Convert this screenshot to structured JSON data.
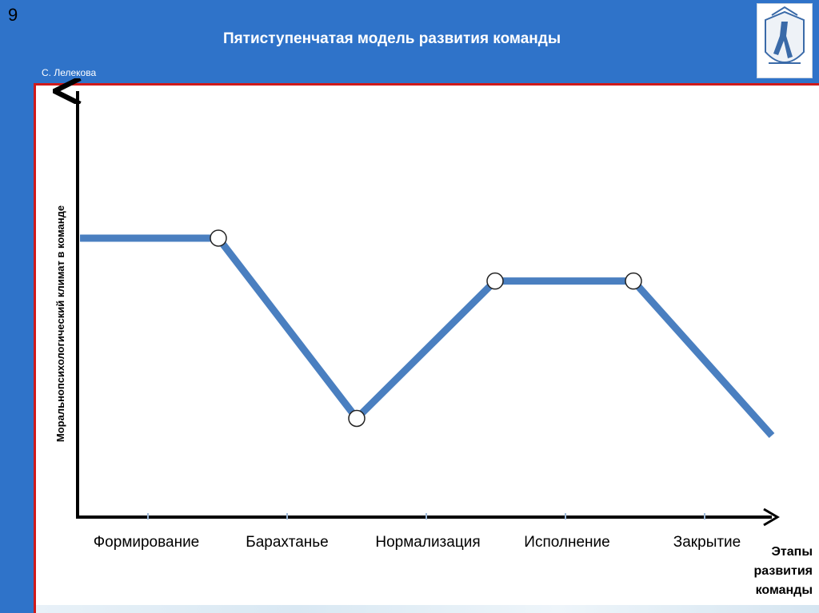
{
  "slide": {
    "number": "9",
    "title": "Пятиступенчатая модель развития команды",
    "author": "С. Лелекова",
    "logo_icon": "university-emblem-icon"
  },
  "colors": {
    "background": "#2f73c9",
    "frame": "#d01a1a",
    "line": "#4a7fc0",
    "axis": "#000000"
  },
  "chart_data": {
    "type": "line",
    "title": "",
    "ylabel": "Моральнопсихологический климат в команде",
    "xlabel": [
      "Этапы",
      "развития",
      "команды"
    ],
    "categories": [
      "Формирование",
      "Барахтанье",
      "Нормализация",
      "Исполнение",
      "Закрытие"
    ],
    "series": [
      {
        "x": [
          0,
          1,
          2,
          3,
          4,
          5
        ],
        "y": [
          65,
          65,
          23,
          55,
          55,
          19
        ],
        "markers": [
          false,
          true,
          true,
          true,
          true,
          false
        ]
      }
    ],
    "ylim": [
      0,
      100
    ],
    "grid": false,
    "legend": "none"
  }
}
